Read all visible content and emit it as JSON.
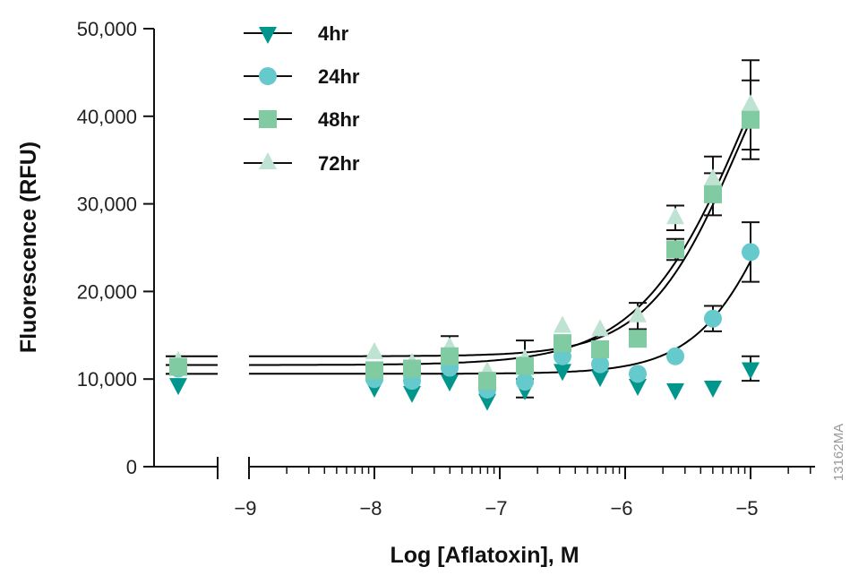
{
  "chart_data": {
    "type": "scatter",
    "xlabel": "Log [Aflatoxin], M",
    "ylabel": "Fluorescence (RFU)",
    "xlim": [
      -9,
      -4.5
    ],
    "ylim": [
      0,
      50000
    ],
    "x_scale": "log concentration (with axis break for control)",
    "x_ticks": [
      -9,
      -8,
      -7,
      -6,
      -5
    ],
    "x_tick_labels": [
      "−9",
      "−8",
      "−7",
      "−6",
      "−5"
    ],
    "y_ticks": [
      0,
      10000,
      20000,
      30000,
      40000,
      50000
    ],
    "y_tick_labels": [
      "0",
      "10,000",
      "20,000",
      "30,000",
      "40,000",
      "50,000"
    ],
    "grid": false,
    "legend_position": "top-left",
    "figure_code": "13162MA",
    "x": [
      -8,
      -7.7,
      -7.4,
      -7.1,
      -6.8,
      -6.5,
      -6.2,
      -5.9,
      -5.6,
      -5.3,
      -5
    ],
    "series": [
      {
        "name": "4hr",
        "marker": "triangle-down",
        "color": "#00968c",
        "control": 9400,
        "values": [
          9100,
          8500,
          9800,
          7600,
          8800,
          11000,
          10300,
          9300,
          8800,
          9100,
          11200
        ],
        "errors": [
          0,
          0,
          0,
          0,
          0,
          0,
          0,
          0,
          0,
          0,
          1400
        ],
        "fit": null
      },
      {
        "name": "24hr",
        "marker": "circle",
        "color": "#66c9cc",
        "control": 11200,
        "values": [
          10000,
          9800,
          11300,
          8800,
          9700,
          12600,
          11700,
          10600,
          12600,
          16900,
          24500
        ],
        "errors": [
          0,
          0,
          0,
          0,
          1800,
          0,
          0,
          0,
          0,
          1450,
          3400
        ],
        "fit": {
          "bottom": 10600,
          "top": 55000,
          "logEC50": -4.7,
          "hill": 1.3
        }
      },
      {
        "name": "48hr",
        "marker": "square",
        "color": "#80cba1",
        "control": 11400,
        "values": [
          11000,
          11200,
          12600,
          9800,
          11500,
          14100,
          13400,
          14600,
          24800,
          31100,
          39600
        ],
        "errors": [
          0,
          0,
          0,
          0,
          0,
          0,
          0,
          0,
          1200,
          2400,
          4500
        ],
        "fit": {
          "bottom": 11600,
          "top": 70000,
          "logEC50": -5.0,
          "hill": 1.0
        }
      },
      {
        "name": "72hr",
        "marker": "triangle-up",
        "color": "#bfe3d2",
        "control": 12000,
        "values": [
          13000,
          11800,
          13600,
          10800,
          12200,
          16000,
          15600,
          17200,
          28400,
          32800,
          41300
        ],
        "errors": [
          0,
          0,
          1300,
          0,
          2200,
          0,
          0,
          1500,
          1400,
          2600,
          5100
        ],
        "fit": {
          "bottom": 12600,
          "top": 60000,
          "logEC50": -5.1,
          "hill": 1.2
        }
      }
    ]
  }
}
